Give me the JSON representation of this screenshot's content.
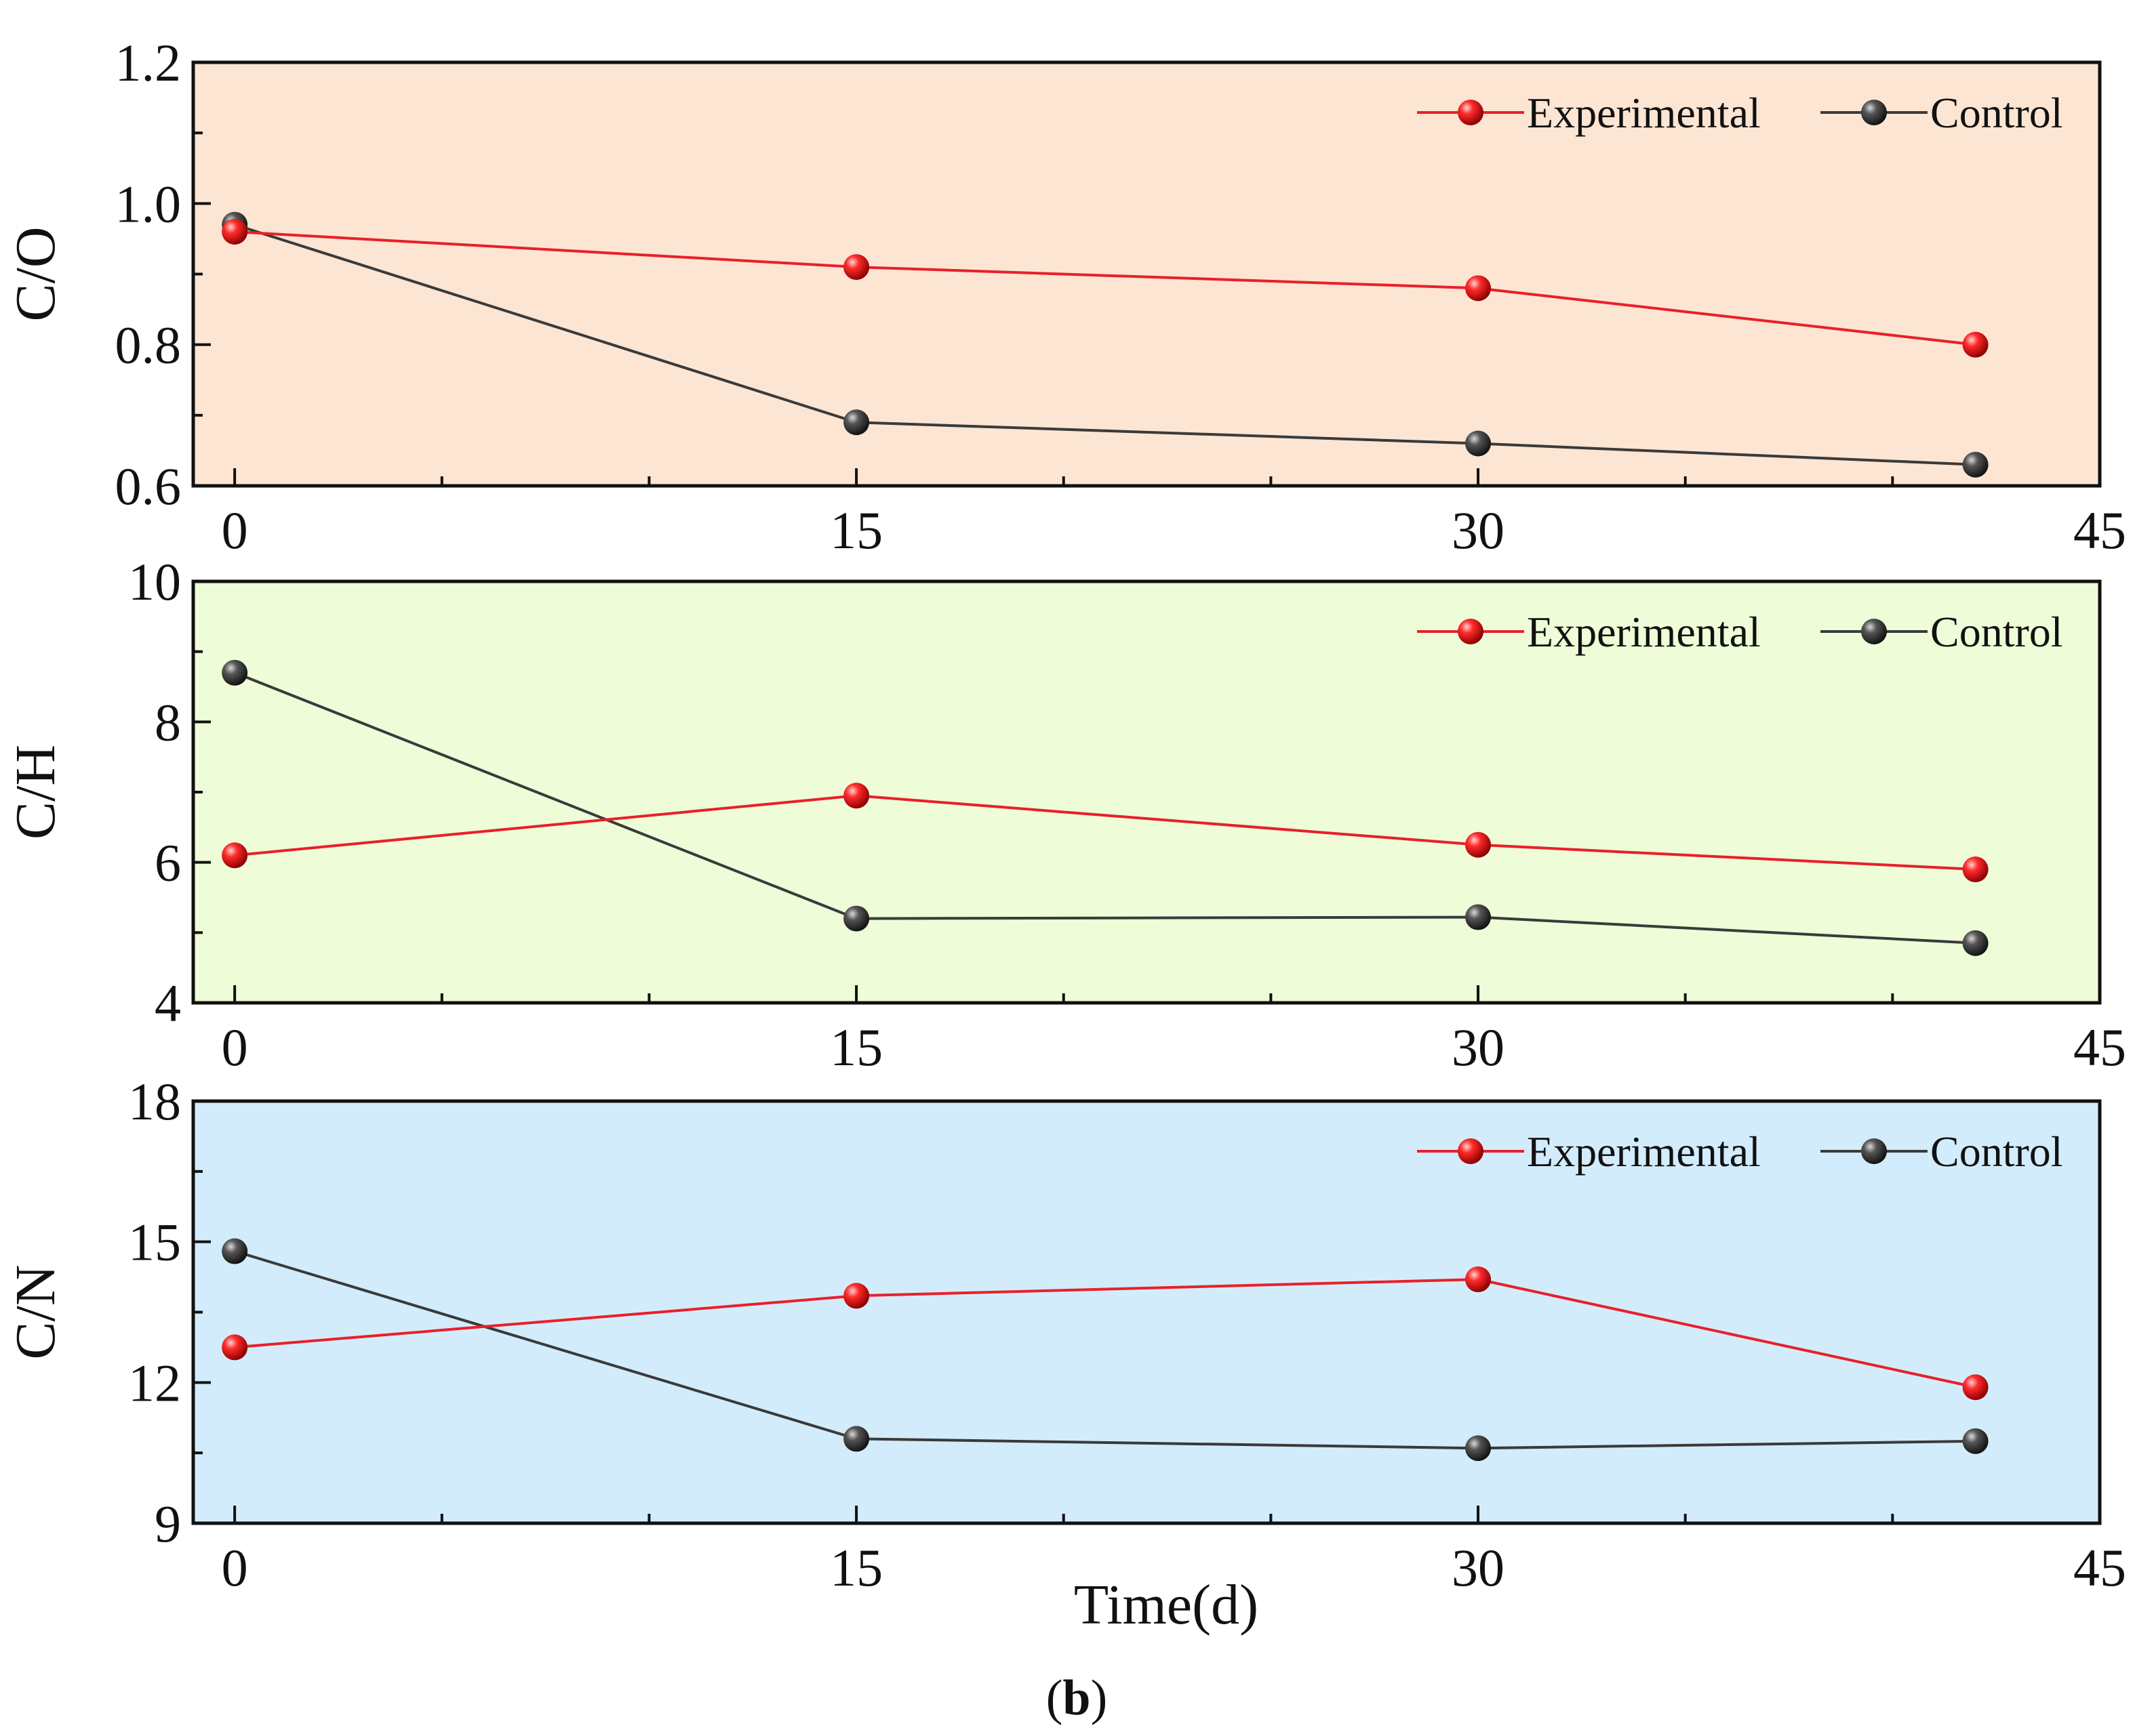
{
  "figure": {
    "caption_prefix": "(",
    "caption_letter": "b",
    "caption_suffix": ")",
    "xlabel": "Time(d)"
  },
  "chart_data": [
    {
      "type": "line",
      "panel": "top",
      "ylabel": "C/O",
      "background": "#fde5d3",
      "x": [
        0,
        15,
        30,
        42
      ],
      "xlim": [
        -1,
        45
      ],
      "xticks": [
        "0",
        "15",
        "30",
        "45"
      ],
      "ylim": [
        0.6,
        1.2
      ],
      "yticks": [
        "0.6",
        "0.8",
        "1.0",
        "1.2"
      ],
      "legend_position": "top-right",
      "series": [
        {
          "name": "Experimental",
          "color": "#e8202a",
          "values": [
            0.96,
            0.91,
            0.88,
            0.8
          ]
        },
        {
          "name": "Control",
          "color": "#3a3a3a",
          "values": [
            0.97,
            0.69,
            0.66,
            0.63
          ]
        }
      ]
    },
    {
      "type": "line",
      "panel": "middle",
      "ylabel": "C/H",
      "background": "#eefcd8",
      "x": [
        0,
        15,
        30,
        42
      ],
      "xlim": [
        -1,
        45
      ],
      "xticks": [
        "0",
        "15",
        "30",
        "45"
      ],
      "ylim": [
        4,
        10
      ],
      "yticks": [
        "4",
        "6",
        "8",
        "10"
      ],
      "legend_position": "top-right",
      "series": [
        {
          "name": "Experimental",
          "color": "#e8202a",
          "values": [
            6.1,
            6.95,
            6.25,
            5.9
          ]
        },
        {
          "name": "Control",
          "color": "#3a3a3a",
          "values": [
            8.7,
            5.2,
            5.22,
            4.85
          ]
        }
      ]
    },
    {
      "type": "line",
      "panel": "bottom",
      "ylabel": "C/N",
      "background": "#d3ecfb",
      "x": [
        0,
        15,
        30,
        42
      ],
      "xlim": [
        -1,
        45
      ],
      "xticks": [
        "0",
        "15",
        "30",
        "45"
      ],
      "ylim": [
        9,
        18
      ],
      "yticks": [
        "9",
        "12",
        "15",
        "18"
      ],
      "legend_position": "top-right",
      "series": [
        {
          "name": "Experimental",
          "color": "#e8202a",
          "values": [
            12.75,
            13.85,
            14.2,
            11.9
          ]
        },
        {
          "name": "Control",
          "color": "#3a3a3a",
          "values": [
            14.8,
            10.8,
            10.6,
            10.75
          ]
        }
      ]
    }
  ]
}
